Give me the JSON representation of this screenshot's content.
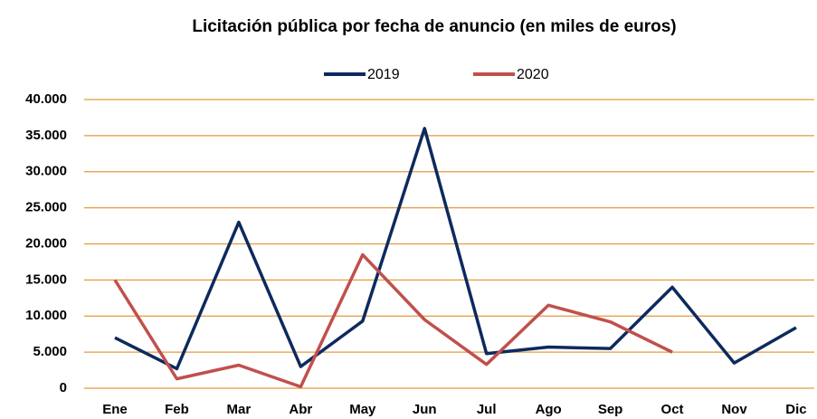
{
  "chart_data": {
    "type": "line",
    "title": "Licitación pública por fecha de anuncio (en miles de euros)",
    "categories": [
      "Ene",
      "Feb",
      "Mar",
      "Abr",
      "May",
      "Jun",
      "Jul",
      "Ago",
      "Sep",
      "Oct",
      "Nov",
      "Dic"
    ],
    "series": [
      {
        "name": "2019",
        "color": "#0d2a5e",
        "values": [
          7000,
          2700,
          23000,
          3000,
          9300,
          36000,
          4800,
          5700,
          5500,
          14000,
          3500,
          8400
        ]
      },
      {
        "name": "2020",
        "color": "#c0504d",
        "values": [
          15000,
          1300,
          3200,
          200,
          18500,
          9500,
          3300,
          11500,
          9200,
          5000,
          null,
          null
        ]
      }
    ],
    "ylim": [
      0,
      40000
    ],
    "yticks": [
      0,
      {
        "value": 5000,
        "label": "5.000"
      },
      {
        "value": 10000,
        "label": "10.000"
      },
      {
        "value": 15000,
        "label": "15.000"
      },
      {
        "value": 20000,
        "label": "20.000"
      },
      {
        "value": 25000,
        "label": "25.000"
      },
      {
        "value": 30000,
        "label": "30.000"
      },
      {
        "value": 35000,
        "label": "35.000"
      },
      {
        "value": 40000,
        "label": "40.000"
      }
    ],
    "grid": true,
    "grid_color": "#e59a3c",
    "legend": "top"
  }
}
